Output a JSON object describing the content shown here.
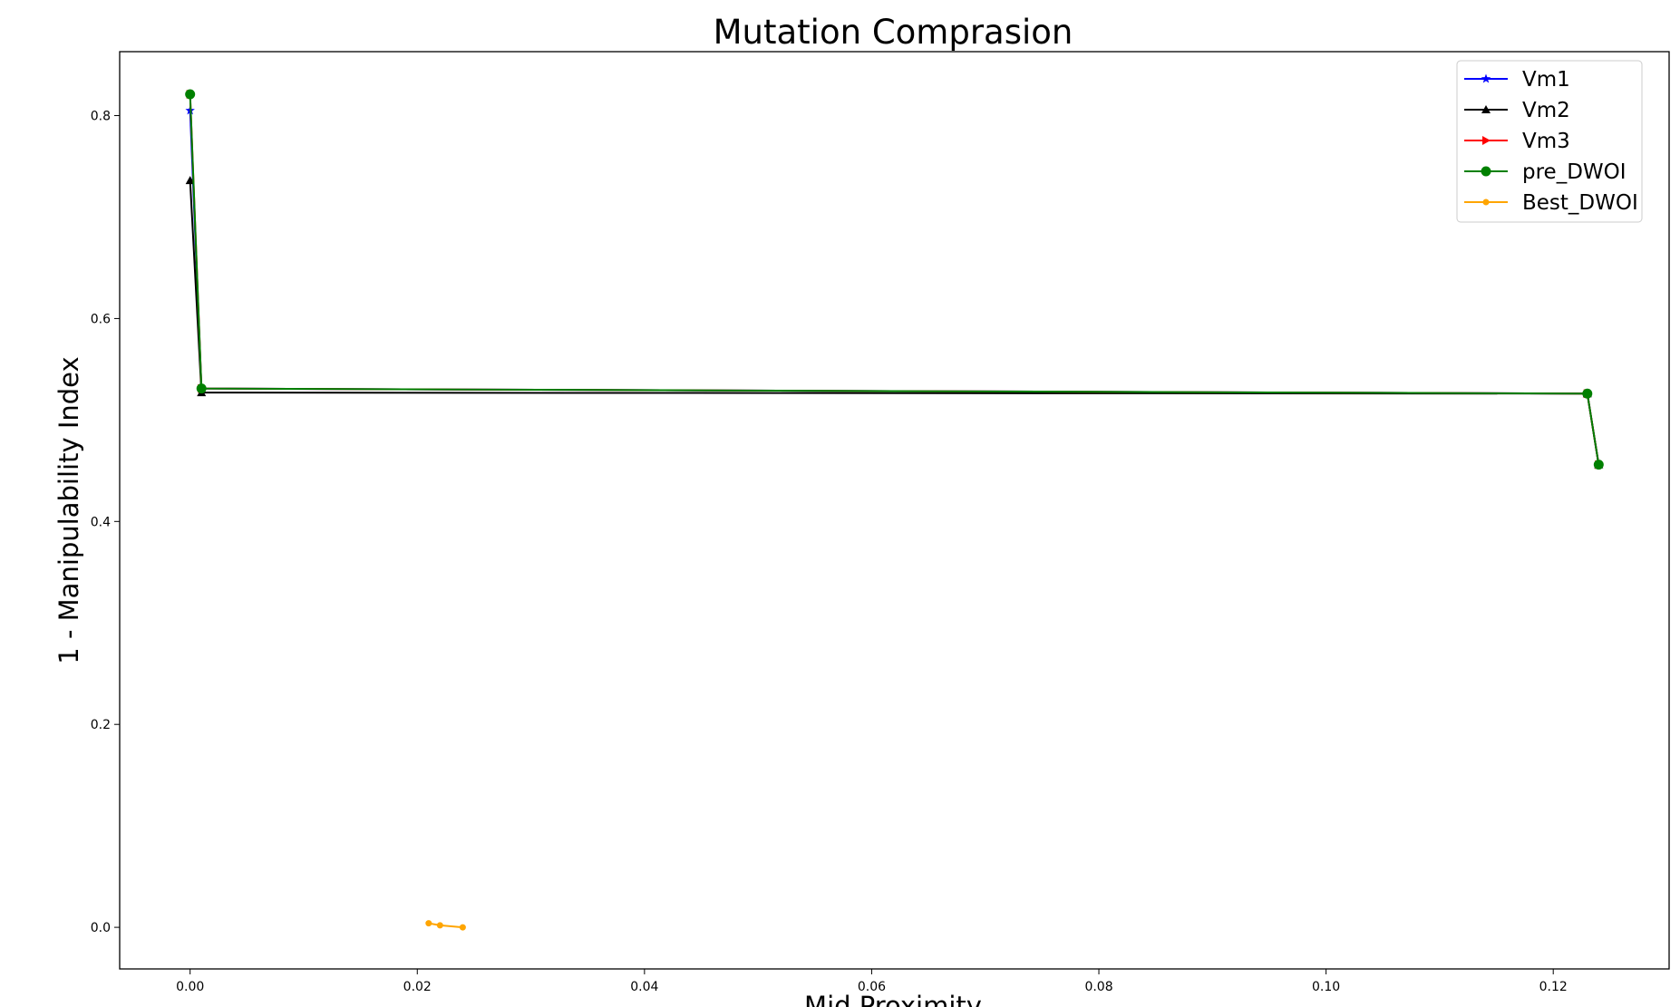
{
  "chart_data": {
    "type": "line",
    "title": "Mutation Comprasion",
    "xlabel": "Mid Proximity",
    "ylabel": "1 - Manipulability Index",
    "xlim": [
      -0.0062,
      0.1302
    ],
    "ylim": [
      -0.041,
      0.863
    ],
    "xticks": [
      "0.00",
      "0.02",
      "0.04",
      "0.06",
      "0.08",
      "0.10",
      "0.12"
    ],
    "xtick_values": [
      0.0,
      0.02,
      0.04,
      0.06,
      0.08,
      0.1,
      0.12
    ],
    "yticks": [
      "0.0",
      "0.2",
      "0.4",
      "0.6",
      "0.8"
    ],
    "ytick_values": [
      0.0,
      0.2,
      0.4,
      0.6,
      0.8
    ],
    "grid": false,
    "legend_position": "top-right",
    "series": [
      {
        "name": "Vm1",
        "color": "#0000ff",
        "marker": "star",
        "x": [
          0.0,
          0.001,
          0.123,
          0.124
        ],
        "y": [
          0.805,
          0.531,
          0.526,
          0.456
        ]
      },
      {
        "name": "Vm2",
        "color": "#000000",
        "marker": "triangle-up",
        "x": [
          0.0,
          0.001,
          0.123,
          0.124
        ],
        "y": [
          0.736,
          0.527,
          0.526,
          0.456
        ]
      },
      {
        "name": "Vm3",
        "color": "#ff0000",
        "marker": "triangle-right",
        "x": [
          0.0,
          0.001,
          0.123,
          0.124
        ],
        "y": [
          0.821,
          0.531,
          0.526,
          0.456
        ]
      },
      {
        "name": "pre_DWOI",
        "color": "#008000",
        "marker": "circle",
        "x": [
          0.0,
          0.001,
          0.123,
          0.124
        ],
        "y": [
          0.821,
          0.531,
          0.526,
          0.456
        ]
      },
      {
        "name": "Best_DWOI",
        "color": "#ffa500",
        "marker": "small-circle",
        "x": [
          0.021,
          0.022,
          0.024
        ],
        "y": [
          0.004,
          0.002,
          0.0
        ]
      }
    ]
  }
}
